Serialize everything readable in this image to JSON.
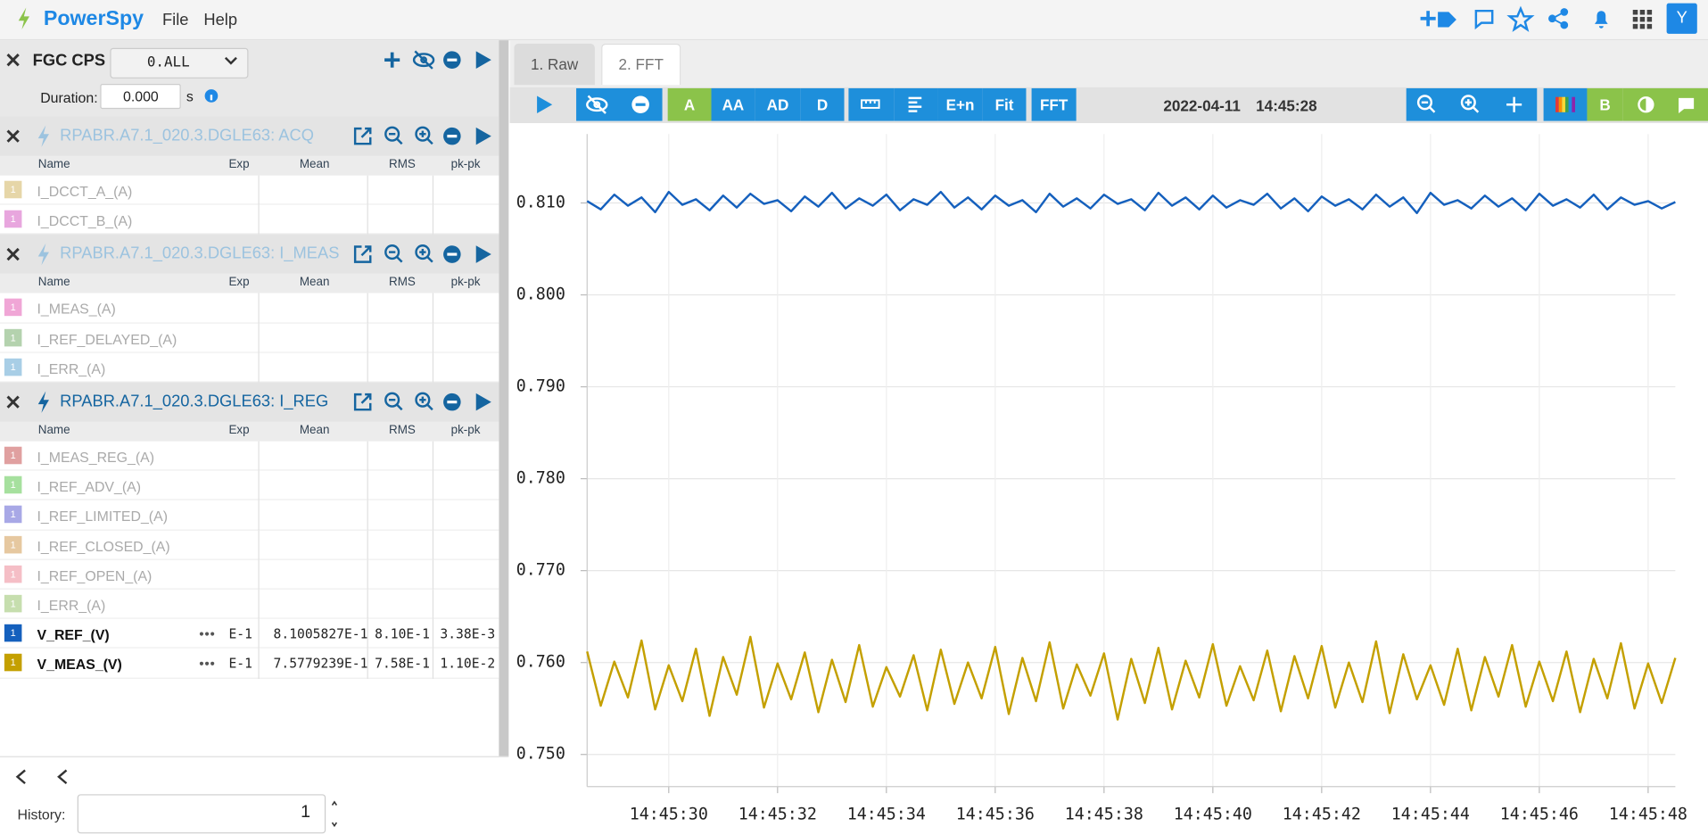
{
  "app": {
    "name": "PowerSpy",
    "menu": [
      "File",
      "Help"
    ],
    "user": "Y"
  },
  "sidebar": {
    "device": "FGC CPS",
    "selector": "0.ALL",
    "duration_label": "Duration:",
    "duration": "0.000",
    "duration_unit": "s",
    "groups": [
      {
        "title": "RPABR.A7.1_020.3.DGLE63: ACQ",
        "active": false,
        "columns": [
          "Name",
          "Exp",
          "Mean",
          "RMS",
          "pk-pk"
        ],
        "rows": [
          {
            "badge": "1",
            "name": "I_DCCT_A_(A)",
            "color": "#e6d6a8"
          },
          {
            "badge": "1",
            "name": "I_DCCT_B_(A)",
            "color": "#e8a6de"
          }
        ]
      },
      {
        "title": "RPABR.A7.1_020.3.DGLE63: I_MEAS",
        "active": false,
        "columns": [
          "Name",
          "Exp",
          "Mean",
          "RMS",
          "pk-pk"
        ],
        "rows": [
          {
            "badge": "1",
            "name": "I_MEAS_(A)",
            "color": "#f0a6d6"
          },
          {
            "badge": "1",
            "name": "I_REF_DELAYED_(A)",
            "color": "#b4d2ae"
          },
          {
            "badge": "1",
            "name": "I_ERR_(A)",
            "color": "#a8cee6"
          }
        ]
      },
      {
        "title": "RPABR.A7.1_020.3.DGLE63: I_REG",
        "active": true,
        "columns": [
          "Name",
          "Exp",
          "Mean",
          "RMS",
          "pk-pk"
        ],
        "rows": [
          {
            "badge": "1",
            "name": "I_MEAS_REG_(A)",
            "color": "#e0a0a0"
          },
          {
            "badge": "1",
            "name": "I_REF_ADV_(A)",
            "color": "#a6e09e"
          },
          {
            "badge": "1",
            "name": "I_REF_LIMITED_(A)",
            "color": "#a8a8e6"
          },
          {
            "badge": "1",
            "name": "I_REF_CLOSED_(A)",
            "color": "#e6c8a0"
          },
          {
            "badge": "1",
            "name": "I_REF_OPEN_(A)",
            "color": "#f5bec6"
          },
          {
            "badge": "1",
            "name": "I_ERR_(A)",
            "color": "#c6deae"
          },
          {
            "badge": "1",
            "name": "V_REF_(V)",
            "color": "#1560bd",
            "exp": "E-1",
            "mean": "8.1005827E-1",
            "rms": "8.10E-1",
            "pkpk": "3.38E-3"
          },
          {
            "badge": "1",
            "name": "V_MEAS_(V)",
            "color": "#c4a000",
            "exp": "E-1",
            "mean": "7.5779239E-1",
            "rms": "7.58E-1",
            "pkpk": "1.10E-2"
          }
        ]
      }
    ],
    "history_label": "History:",
    "history": "1"
  },
  "tabs": [
    "1. Raw",
    "2. FFT"
  ],
  "toolbar": {
    "buttons": [
      "A",
      "AA",
      "AD",
      "D",
      "E+n",
      "Fit",
      "FFT",
      "B"
    ],
    "date": "2022-04-11",
    "time": "14:45:28"
  },
  "chart_data": {
    "type": "line",
    "grid": true,
    "x": [
      28.5,
      28.75,
      29,
      29.25,
      29.5,
      29.75,
      30,
      30.25,
      30.5,
      30.75,
      31,
      31.25,
      31.5,
      31.75,
      32,
      32.25,
      32.5,
      32.75,
      33,
      33.25,
      33.5,
      33.75,
      34,
      34.25,
      34.5,
      34.75,
      35,
      35.25,
      35.5,
      35.75,
      36,
      36.25,
      36.5,
      36.75,
      37,
      37.25,
      37.5,
      37.75,
      38,
      38.25,
      38.5,
      38.75,
      39,
      39.25,
      39.5,
      39.75,
      40,
      40.25,
      40.5,
      40.75,
      41,
      41.25,
      41.5,
      41.75,
      42,
      42.25,
      42.5,
      42.75,
      43,
      43.25,
      43.5,
      43.75,
      44,
      44.25,
      44.5,
      44.75,
      45,
      45.25,
      45.5,
      45.75,
      46,
      46.25,
      46.5,
      46.75,
      47,
      47.25,
      47.5,
      47.75,
      48,
      48.25,
      48.5
    ],
    "series": [
      {
        "name": "V_REF_(V)",
        "color": "#1560bd",
        "values": [
          0.8102,
          0.8093,
          0.8109,
          0.8097,
          0.8106,
          0.809,
          0.8112,
          0.8098,
          0.8104,
          0.8092,
          0.8108,
          0.8095,
          0.811,
          0.8099,
          0.8103,
          0.8091,
          0.8107,
          0.8096,
          0.8111,
          0.8094,
          0.8105,
          0.8097,
          0.8109,
          0.8092,
          0.8104,
          0.8098,
          0.8112,
          0.8095,
          0.8106,
          0.8093,
          0.8108,
          0.8097,
          0.8103,
          0.809,
          0.811,
          0.8096,
          0.8105,
          0.8094,
          0.8109,
          0.8099,
          0.8104,
          0.8092,
          0.8111,
          0.8097,
          0.8106,
          0.8093,
          0.8108,
          0.8095,
          0.8103,
          0.8098,
          0.811,
          0.8094,
          0.8105,
          0.8091,
          0.8107,
          0.8097,
          0.8104,
          0.8093,
          0.8109,
          0.8096,
          0.8106,
          0.8089,
          0.8111,
          0.8098,
          0.8103,
          0.8094,
          0.8108,
          0.8096,
          0.8105,
          0.8092,
          0.811,
          0.8097,
          0.8104,
          0.8095,
          0.8109,
          0.8093,
          0.8106,
          0.8098,
          0.8102,
          0.8094,
          0.8101
        ]
      },
      {
        "name": "V_MEAS_(V)",
        "color": "#c4a000",
        "values": [
          0.7612,
          0.7553,
          0.7601,
          0.7562,
          0.7624,
          0.7549,
          0.7597,
          0.7558,
          0.7615,
          0.7542,
          0.7606,
          0.7565,
          0.7628,
          0.7551,
          0.7599,
          0.756,
          0.7611,
          0.7546,
          0.7603,
          0.7557,
          0.7619,
          0.7552,
          0.7595,
          0.7563,
          0.7608,
          0.7548,
          0.7614,
          0.7555,
          0.76,
          0.7561,
          0.7617,
          0.7544,
          0.7605,
          0.7558,
          0.7622,
          0.755,
          0.7598,
          0.7564,
          0.761,
          0.7538,
          0.7604,
          0.7556,
          0.7616,
          0.7549,
          0.7602,
          0.7562,
          0.762,
          0.7553,
          0.7596,
          0.7559,
          0.7613,
          0.7547,
          0.7607,
          0.7561,
          0.7618,
          0.7551,
          0.76,
          0.7557,
          0.7623,
          0.7545,
          0.7609,
          0.756,
          0.7597,
          0.7554,
          0.7615,
          0.7548,
          0.7606,
          0.7563,
          0.7619,
          0.7552,
          0.7601,
          0.7558,
          0.7612,
          0.7546,
          0.7604,
          0.7561,
          0.7621,
          0.755,
          0.7599,
          0.7556,
          0.7605
        ]
      }
    ],
    "xlim": [
      28.5,
      48.5
    ],
    "xticks": [
      {
        "value": 30,
        "label": "14:45:30"
      },
      {
        "value": 32,
        "label": "14:45:32"
      },
      {
        "value": 34,
        "label": "14:45:34"
      },
      {
        "value": 36,
        "label": "14:45:36"
      },
      {
        "value": 38,
        "label": "14:45:38"
      },
      {
        "value": 40,
        "label": "14:45:40"
      },
      {
        "value": 42,
        "label": "14:45:42"
      },
      {
        "value": 44,
        "label": "14:45:44"
      },
      {
        "value": 46,
        "label": "14:45:46"
      },
      {
        "value": 48,
        "label": "14:45:48"
      }
    ],
    "ylim": [
      0.7465,
      0.8175
    ],
    "yticks": [
      {
        "value": 0.75,
        "label": "0.750"
      },
      {
        "value": 0.76,
        "label": "0.760"
      },
      {
        "value": 0.77,
        "label": "0.770"
      },
      {
        "value": 0.78,
        "label": "0.780"
      },
      {
        "value": 0.79,
        "label": "0.790"
      },
      {
        "value": 0.8,
        "label": "0.800"
      },
      {
        "value": 0.81,
        "label": "0.810"
      }
    ]
  }
}
